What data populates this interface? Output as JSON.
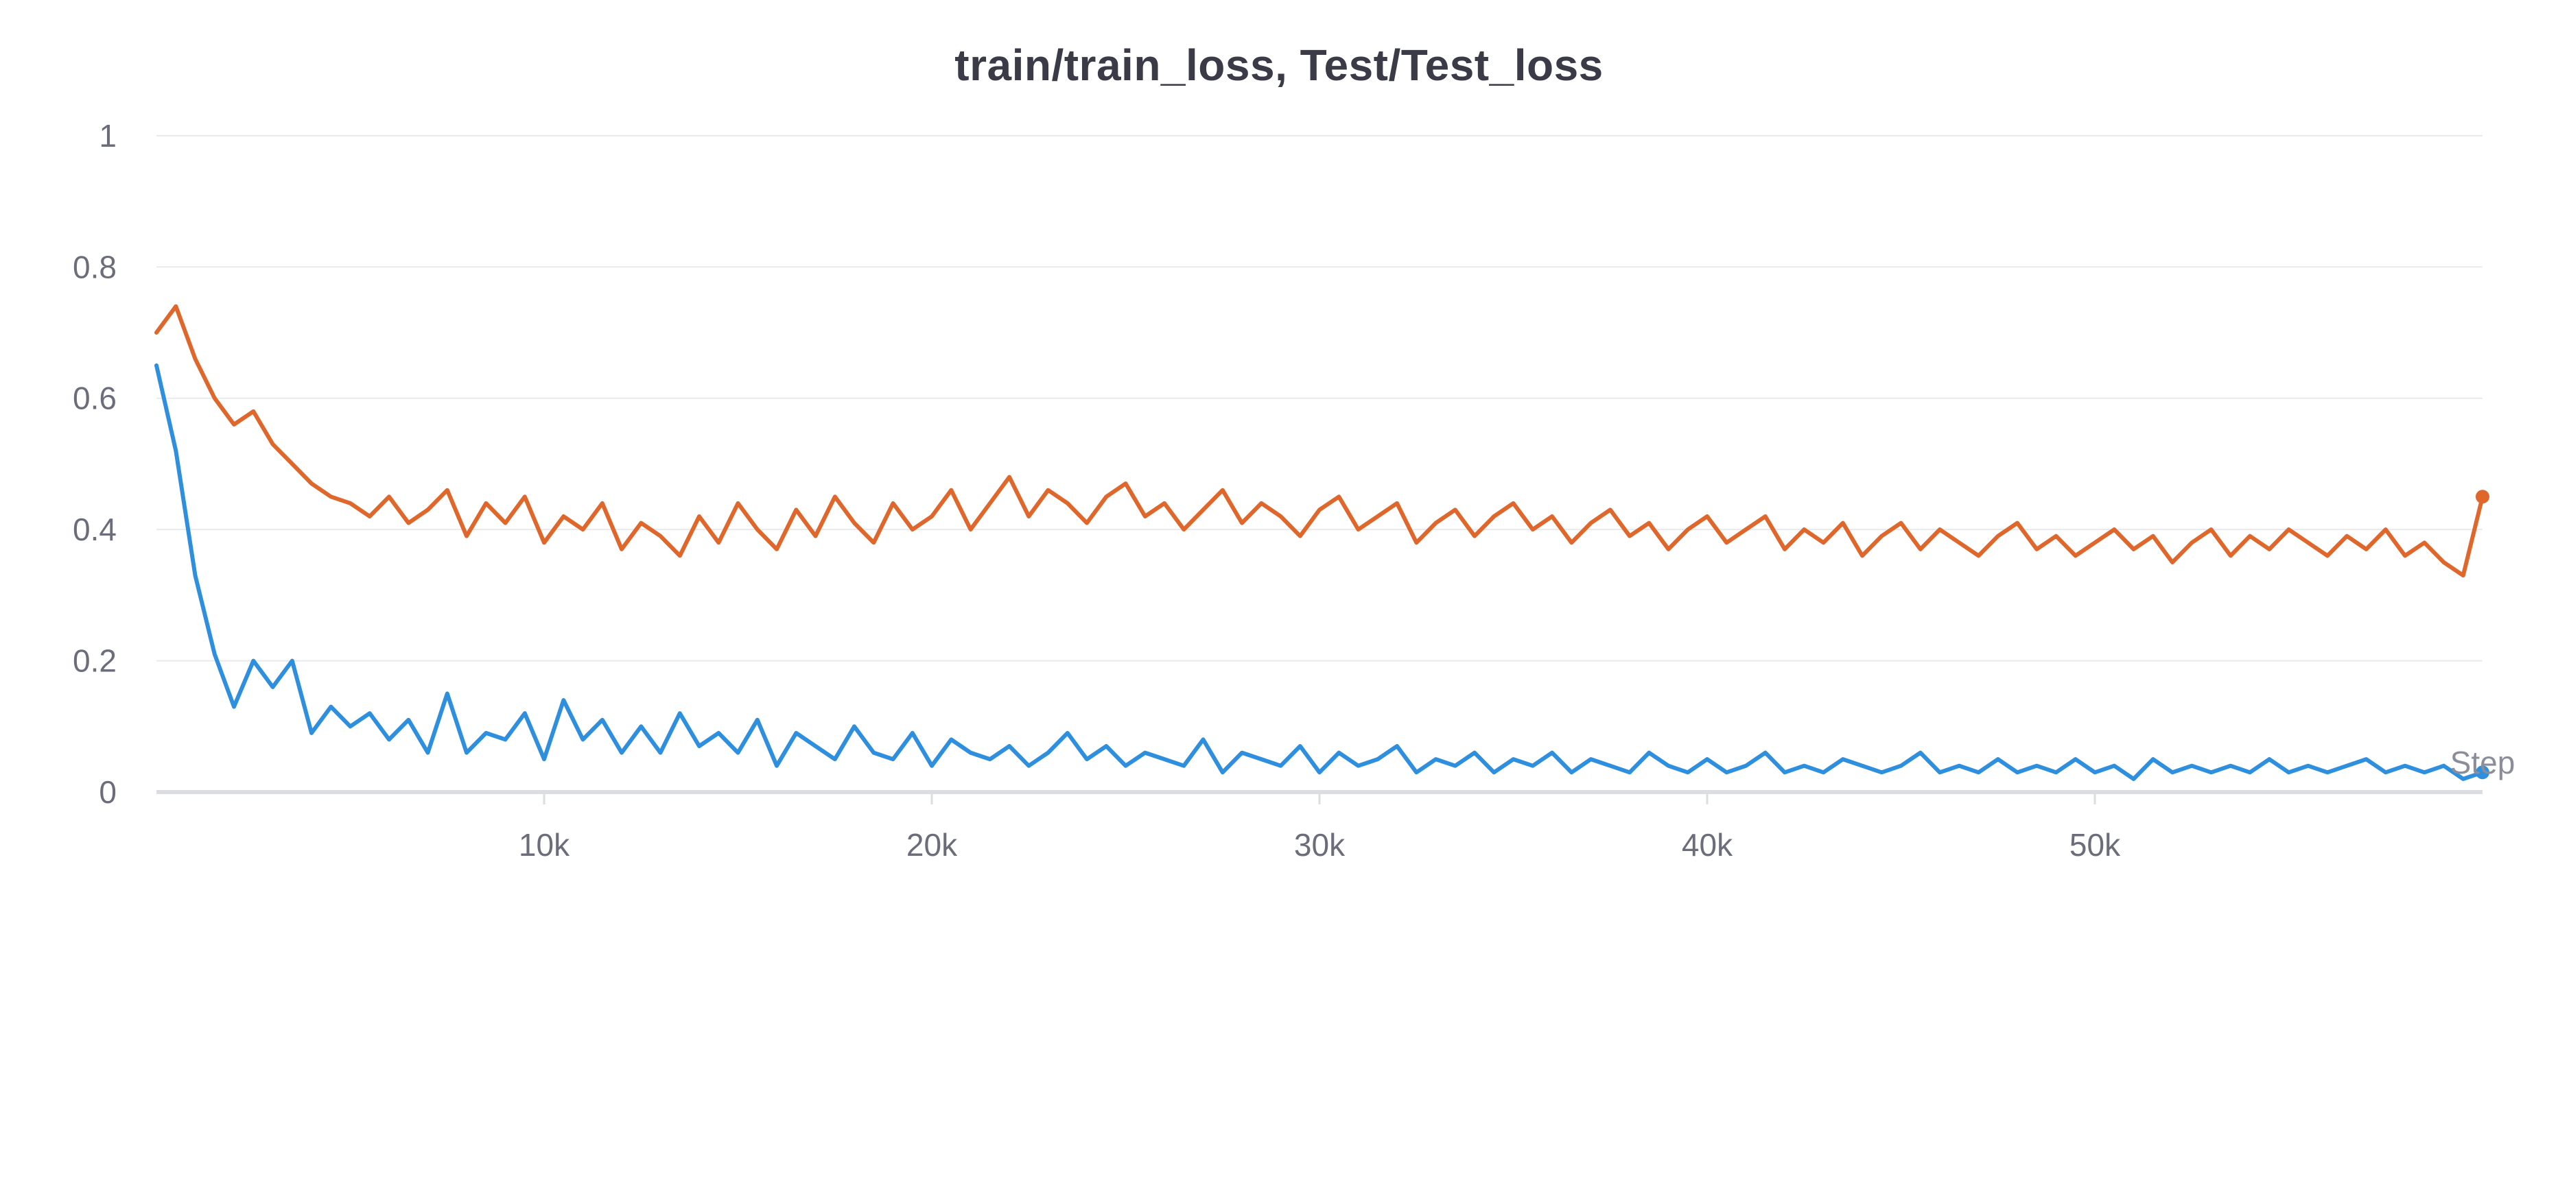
{
  "chart_data": {
    "type": "line",
    "title": "train/train_loss, Test/Test_loss",
    "xlabel": "Step",
    "ylabel": "",
    "xlim": [
      0,
      60000
    ],
    "ylim": [
      0,
      1.05
    ],
    "x_ticks": [
      10000,
      20000,
      30000,
      40000,
      50000
    ],
    "x_tick_labels": [
      "10k",
      "20k",
      "30k",
      "40k",
      "50k"
    ],
    "y_ticks": [
      0,
      0.2,
      0.4,
      0.6,
      0.8,
      1
    ],
    "y_tick_labels": [
      "0",
      "0.2",
      "0.4",
      "0.6",
      "0.8",
      "1"
    ],
    "grid": "horizontal",
    "legend": "none",
    "series": [
      {
        "color": "#2f8fdf",
        "x": [
          0,
          500,
          1000,
          1500,
          2000,
          2500,
          3000,
          3500,
          4000,
          4500,
          5000,
          5500,
          6000,
          6500,
          7000,
          7500,
          8000,
          8500,
          9000,
          9500,
          10000,
          10500,
          11000,
          11500,
          12000,
          12500,
          13000,
          13500,
          14000,
          14500,
          15000,
          15500,
          16000,
          16500,
          17000,
          17500,
          18000,
          18500,
          19000,
          19500,
          20000,
          20500,
          21000,
          21500,
          22000,
          22500,
          23000,
          23500,
          24000,
          24500,
          25000,
          25500,
          26000,
          26500,
          27000,
          27500,
          28000,
          28500,
          29000,
          29500,
          30000,
          30500,
          31000,
          31500,
          32000,
          32500,
          33000,
          33500,
          34000,
          34500,
          35000,
          35500,
          36000,
          36500,
          37000,
          37500,
          38000,
          38500,
          39000,
          39500,
          40000,
          40500,
          41000,
          41500,
          42000,
          42500,
          43000,
          43500,
          44000,
          44500,
          45000,
          45500,
          46000,
          46500,
          47000,
          47500,
          48000,
          48500,
          49000,
          49500,
          50000,
          50500,
          51000,
          51500,
          52000,
          52500,
          53000,
          53500,
          54000,
          54500,
          55000,
          55500,
          56000,
          56500,
          57000,
          57500,
          58000,
          58500,
          59000,
          59500,
          60000
        ],
        "y": [
          0.65,
          0.52,
          0.33,
          0.21,
          0.13,
          0.2,
          0.16,
          0.2,
          0.09,
          0.13,
          0.1,
          0.12,
          0.08,
          0.11,
          0.06,
          0.15,
          0.06,
          0.09,
          0.08,
          0.12,
          0.05,
          0.14,
          0.08,
          0.11,
          0.06,
          0.1,
          0.06,
          0.12,
          0.07,
          0.09,
          0.06,
          0.11,
          0.04,
          0.09,
          0.07,
          0.05,
          0.1,
          0.06,
          0.05,
          0.09,
          0.04,
          0.08,
          0.06,
          0.05,
          0.07,
          0.04,
          0.06,
          0.09,
          0.05,
          0.07,
          0.04,
          0.06,
          0.05,
          0.04,
          0.08,
          0.03,
          0.06,
          0.05,
          0.04,
          0.07,
          0.03,
          0.06,
          0.04,
          0.05,
          0.07,
          0.03,
          0.05,
          0.04,
          0.06,
          0.03,
          0.05,
          0.04,
          0.06,
          0.03,
          0.05,
          0.04,
          0.03,
          0.06,
          0.04,
          0.03,
          0.05,
          0.03,
          0.04,
          0.06,
          0.03,
          0.04,
          0.03,
          0.05,
          0.04,
          0.03,
          0.04,
          0.06,
          0.03,
          0.04,
          0.03,
          0.05,
          0.03,
          0.04,
          0.03,
          0.05,
          0.03,
          0.04,
          0.02,
          0.05,
          0.03,
          0.04,
          0.03,
          0.04,
          0.03,
          0.05,
          0.03,
          0.04,
          0.03,
          0.04,
          0.05,
          0.03,
          0.04,
          0.03,
          0.04,
          0.02,
          0.03
        ]
      },
      {
        "color": "#e0672b",
        "x": [
          0,
          500,
          1000,
          1500,
          2000,
          2500,
          3000,
          3500,
          4000,
          4500,
          5000,
          5500,
          6000,
          6500,
          7000,
          7500,
          8000,
          8500,
          9000,
          9500,
          10000,
          10500,
          11000,
          11500,
          12000,
          12500,
          13000,
          13500,
          14000,
          14500,
          15000,
          15500,
          16000,
          16500,
          17000,
          17500,
          18000,
          18500,
          19000,
          19500,
          20000,
          20500,
          21000,
          21500,
          22000,
          22500,
          23000,
          23500,
          24000,
          24500,
          25000,
          25500,
          26000,
          26500,
          27000,
          27500,
          28000,
          28500,
          29000,
          29500,
          30000,
          30500,
          31000,
          31500,
          32000,
          32500,
          33000,
          33500,
          34000,
          34500,
          35000,
          35500,
          36000,
          36500,
          37000,
          37500,
          38000,
          38500,
          39000,
          39500,
          40000,
          40500,
          41000,
          41500,
          42000,
          42500,
          43000,
          43500,
          44000,
          44500,
          45000,
          45500,
          46000,
          46500,
          47000,
          47500,
          48000,
          48500,
          49000,
          49500,
          50000,
          50500,
          51000,
          51500,
          52000,
          52500,
          53000,
          53500,
          54000,
          54500,
          55000,
          55500,
          56000,
          56500,
          57000,
          57500,
          58000,
          58500,
          59000,
          59500,
          60000
        ],
        "y": [
          0.7,
          0.74,
          0.66,
          0.6,
          0.56,
          0.58,
          0.53,
          0.5,
          0.47,
          0.45,
          0.44,
          0.42,
          0.45,
          0.41,
          0.43,
          0.46,
          0.39,
          0.44,
          0.41,
          0.45,
          0.38,
          0.42,
          0.4,
          0.44,
          0.37,
          0.41,
          0.39,
          0.36,
          0.42,
          0.38,
          0.44,
          0.4,
          0.37,
          0.43,
          0.39,
          0.45,
          0.41,
          0.38,
          0.44,
          0.4,
          0.42,
          0.46,
          0.4,
          0.44,
          0.48,
          0.42,
          0.46,
          0.44,
          0.41,
          0.45,
          0.47,
          0.42,
          0.44,
          0.4,
          0.43,
          0.46,
          0.41,
          0.44,
          0.42,
          0.39,
          0.43,
          0.45,
          0.4,
          0.42,
          0.44,
          0.38,
          0.41,
          0.43,
          0.39,
          0.42,
          0.44,
          0.4,
          0.42,
          0.38,
          0.41,
          0.43,
          0.39,
          0.41,
          0.37,
          0.4,
          0.42,
          0.38,
          0.4,
          0.42,
          0.37,
          0.4,
          0.38,
          0.41,
          0.36,
          0.39,
          0.41,
          0.37,
          0.4,
          0.38,
          0.36,
          0.39,
          0.41,
          0.37,
          0.39,
          0.36,
          0.38,
          0.4,
          0.37,
          0.39,
          0.35,
          0.38,
          0.4,
          0.36,
          0.39,
          0.37,
          0.4,
          0.38,
          0.36,
          0.39,
          0.37,
          0.4,
          0.36,
          0.38,
          0.35,
          0.33,
          0.45
        ]
      }
    ]
  }
}
